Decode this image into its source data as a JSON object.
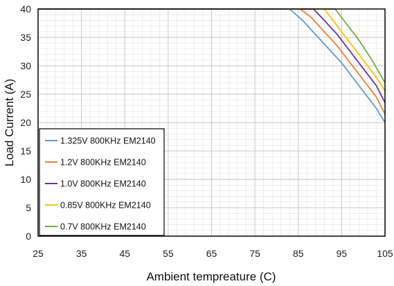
{
  "chart_data": {
    "type": "line",
    "title": "",
    "xlabel": "Ambient tempreature (C)",
    "ylabel": "Load Current (A)",
    "xlim": [
      25,
      105
    ],
    "ylim": [
      0,
      40
    ],
    "x_ticks": [
      25,
      35,
      45,
      55,
      65,
      75,
      85,
      95,
      105
    ],
    "y_ticks": [
      0,
      5,
      10,
      15,
      20,
      25,
      30,
      35,
      40
    ],
    "grid": true,
    "legend_position": "bottom-left",
    "series": [
      {
        "name": "1.325V 800KHz EM2140",
        "color": "#5b9bd5",
        "x": [
          25,
          83,
          86,
          89,
          92,
          95,
          98,
          101,
          103,
          105
        ],
        "y": [
          40,
          40,
          38,
          35.5,
          33,
          30.5,
          27.5,
          24.5,
          22.5,
          20
        ]
      },
      {
        "name": "1.2V 800KHz EM2140",
        "color": "#ed7d31",
        "x": [
          25,
          85.5,
          88,
          91,
          94,
          97,
          100,
          103,
          105
        ],
        "y": [
          40,
          40,
          38.5,
          36,
          33.5,
          30.5,
          27.5,
          24.5,
          21.5
        ]
      },
      {
        "name": "1.0V 800KHz EM2140",
        "color": "#7030a0",
        "x": [
          25,
          88.5,
          91,
          94,
          97,
          100,
          103,
          105
        ],
        "y": [
          40,
          40,
          38,
          35.5,
          32.5,
          29.5,
          26.5,
          23.5
        ]
      },
      {
        "name": "0.85V 800KHz EM2140",
        "color": "#ffc000",
        "x": [
          25,
          91,
          94,
          97,
          100,
          103,
          105
        ],
        "y": [
          40,
          40,
          37,
          34,
          31,
          28,
          25.5
        ]
      },
      {
        "name": "0.7V 800KHz EM2140",
        "color": "#70ad47",
        "x": [
          25,
          93.5,
          96,
          99,
          102,
          105
        ],
        "y": [
          40,
          40,
          37.5,
          34.5,
          31,
          27
        ]
      }
    ]
  }
}
